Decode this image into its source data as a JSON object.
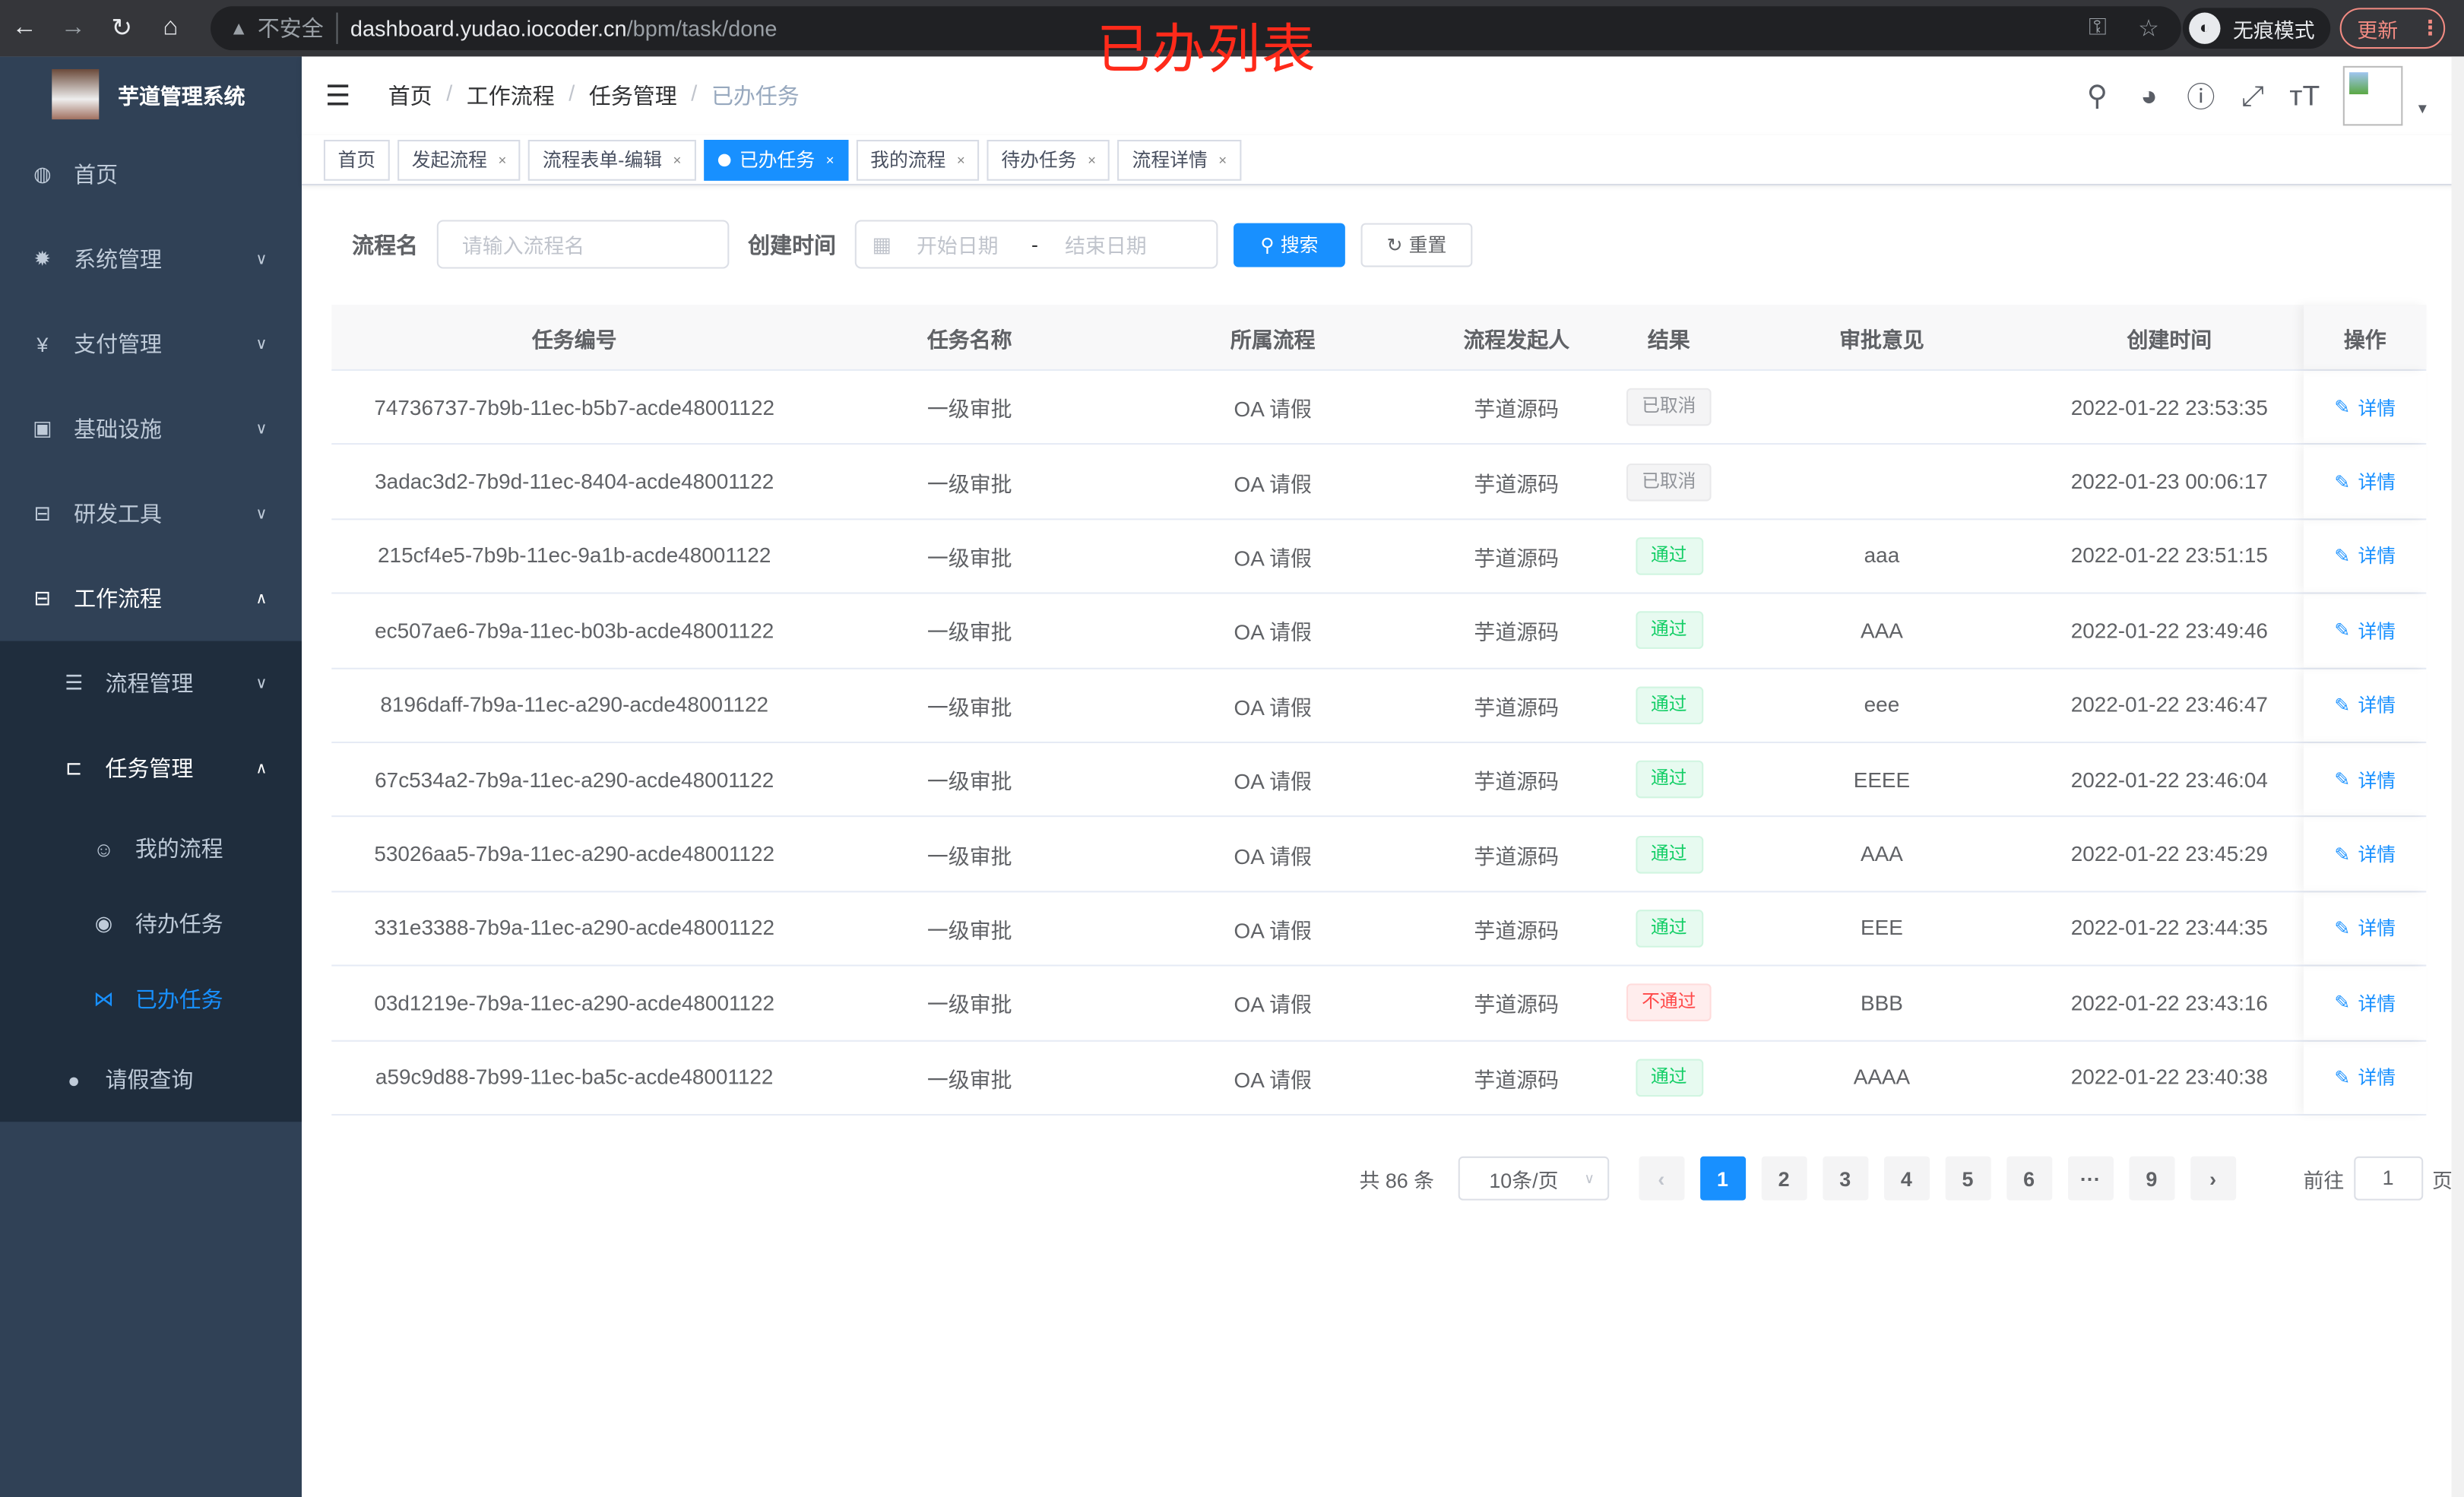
{
  "browser": {
    "insecure_label": "不安全",
    "url_host": "dashboard.yudao.iocoder.cn",
    "url_path": "/bpm/task/done",
    "incognito_label": "无痕模式",
    "update_label": "更新"
  },
  "annotation": "已办列表",
  "sidebar": {
    "app_title": "芋道管理系统",
    "items": [
      {
        "label": "首页",
        "icon": "dashboard-icon"
      },
      {
        "label": "系统管理",
        "icon": "gear-icon"
      },
      {
        "label": "支付管理",
        "icon": "yen-icon"
      },
      {
        "label": "基础设施",
        "icon": "monitor-icon"
      },
      {
        "label": "研发工具",
        "icon": "toolbox-icon"
      },
      {
        "label": "工作流程",
        "icon": "toolbox-icon"
      }
    ],
    "workflow_children": [
      {
        "label": "流程管理",
        "icon": "list-icon"
      },
      {
        "label": "任务管理",
        "icon": "task-icon"
      },
      {
        "label": "请假查询",
        "icon": "user-icon"
      }
    ],
    "task_children": [
      {
        "label": "我的流程",
        "icon": "person-icon"
      },
      {
        "label": "待办任务",
        "icon": "eye-icon"
      },
      {
        "label": "已办任务",
        "icon": "done-icon",
        "active": true
      }
    ]
  },
  "breadcrumb": [
    "首页",
    "工作流程",
    "任务管理",
    "已办任务"
  ],
  "tags": [
    {
      "label": "首页"
    },
    {
      "label": "发起流程"
    },
    {
      "label": "流程表单-编辑"
    },
    {
      "label": "已办任务",
      "active": true
    },
    {
      "label": "我的流程"
    },
    {
      "label": "待办任务"
    },
    {
      "label": "流程详情"
    }
  ],
  "search": {
    "name_label": "流程名",
    "name_placeholder": "请输入流程名",
    "time_label": "创建时间",
    "start_placeholder": "开始日期",
    "range_sep": "-",
    "end_placeholder": "结束日期",
    "search_btn": "搜索",
    "reset_btn": "重置"
  },
  "table": {
    "headers": [
      "任务编号",
      "任务名称",
      "所属流程",
      "流程发起人",
      "结果",
      "审批意见",
      "创建时间",
      "操作"
    ],
    "action_label": "详情",
    "rows": [
      {
        "id": "74736737-7b9b-11ec-b5b7-acde48001122",
        "name": "一级审批",
        "process": "OA 请假",
        "starter": "芋道源码",
        "result": "已取消",
        "status": "cancel",
        "comment": "",
        "time": "2022-01-22 23:53:35"
      },
      {
        "id": "3adac3d2-7b9d-11ec-8404-acde48001122",
        "name": "一级审批",
        "process": "OA 请假",
        "starter": "芋道源码",
        "result": "已取消",
        "status": "cancel",
        "comment": "",
        "time": "2022-01-23 00:06:17"
      },
      {
        "id": "215cf4e5-7b9b-11ec-9a1b-acde48001122",
        "name": "一级审批",
        "process": "OA 请假",
        "starter": "芋道源码",
        "result": "通过",
        "status": "pass",
        "comment": "aaa",
        "time": "2022-01-22 23:51:15"
      },
      {
        "id": "ec507ae6-7b9a-11ec-b03b-acde48001122",
        "name": "一级审批",
        "process": "OA 请假",
        "starter": "芋道源码",
        "result": "通过",
        "status": "pass",
        "comment": "AAA",
        "time": "2022-01-22 23:49:46"
      },
      {
        "id": "8196daff-7b9a-11ec-a290-acde48001122",
        "name": "一级审批",
        "process": "OA 请假",
        "starter": "芋道源码",
        "result": "通过",
        "status": "pass",
        "comment": "eee",
        "time": "2022-01-22 23:46:47"
      },
      {
        "id": "67c534a2-7b9a-11ec-a290-acde48001122",
        "name": "一级审批",
        "process": "OA 请假",
        "starter": "芋道源码",
        "result": "通过",
        "status": "pass",
        "comment": "EEEE",
        "time": "2022-01-22 23:46:04"
      },
      {
        "id": "53026aa5-7b9a-11ec-a290-acde48001122",
        "name": "一级审批",
        "process": "OA 请假",
        "starter": "芋道源码",
        "result": "通过",
        "status": "pass",
        "comment": "AAA",
        "time": "2022-01-22 23:45:29"
      },
      {
        "id": "331e3388-7b9a-11ec-a290-acde48001122",
        "name": "一级审批",
        "process": "OA 请假",
        "starter": "芋道源码",
        "result": "通过",
        "status": "pass",
        "comment": "EEE",
        "time": "2022-01-22 23:44:35"
      },
      {
        "id": "03d1219e-7b9a-11ec-a290-acde48001122",
        "name": "一级审批",
        "process": "OA 请假",
        "starter": "芋道源码",
        "result": "不通过",
        "status": "reject",
        "comment": "BBB",
        "time": "2022-01-22 23:43:16"
      },
      {
        "id": "a59c9d88-7b99-11ec-ba5c-acde48001122",
        "name": "一级审批",
        "process": "OA 请假",
        "starter": "芋道源码",
        "result": "通过",
        "status": "pass",
        "comment": "AAAA",
        "time": "2022-01-22 23:40:38"
      }
    ]
  },
  "pagination": {
    "total_text": "共 86 条",
    "page_size": "10条/页",
    "pages": [
      "1",
      "2",
      "3",
      "4",
      "5",
      "6",
      "···",
      "9"
    ],
    "current": "1",
    "goto_label": "前往",
    "goto_value": "1",
    "goto_suffix": "页"
  },
  "colors": {
    "accent": "#1890ff",
    "sidebar": "#304156",
    "submenu": "#1f2d3d",
    "pass": "#13ce66",
    "reject": "#ff4949",
    "annotation": "#ff2a1a"
  }
}
